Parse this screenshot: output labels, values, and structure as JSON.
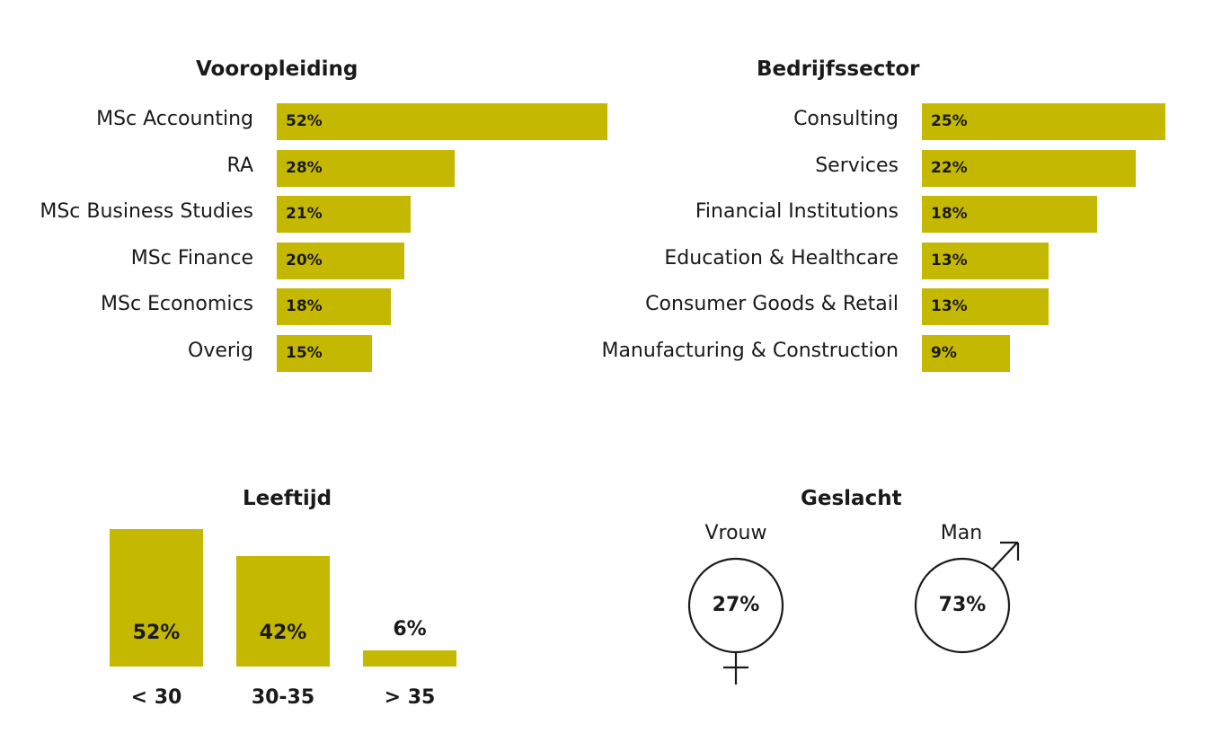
{
  "colors": {
    "bar": "#c4b800",
    "text": "#1a1a1a"
  },
  "chart_data": [
    {
      "type": "bar",
      "orientation": "horizontal",
      "title": "Vooropleiding",
      "categories": [
        "MSc Accounting",
        "RA",
        "MSc Business Studies",
        "MSc Finance",
        "MSc Economics",
        "Overig"
      ],
      "values": [
        52,
        28,
        21,
        20,
        18,
        15
      ],
      "value_labels": [
        "52%",
        "28%",
        "21%",
        "20%",
        "18%",
        "15%"
      ],
      "unit": "%"
    },
    {
      "type": "bar",
      "orientation": "horizontal",
      "title": "Bedrijfssector",
      "categories": [
        "Consulting",
        "Services",
        "Financial Institutions",
        "Education & Healthcare",
        "Consumer Goods & Retail",
        "Manufacturing & Construction"
      ],
      "values": [
        25,
        22,
        18,
        13,
        13,
        9
      ],
      "value_labels": [
        "25%",
        "22%",
        "18%",
        "13%",
        "13%",
        "9%"
      ],
      "unit": "%"
    },
    {
      "type": "bar",
      "orientation": "vertical",
      "title": "Leeftijd",
      "categories": [
        "< 30",
        "30-35",
        "> 35"
      ],
      "values": [
        52,
        42,
        6
      ],
      "value_labels": [
        "52%",
        "42%",
        "6%"
      ],
      "unit": "%"
    },
    {
      "type": "pie",
      "title": "Geslacht",
      "categories": [
        "Vrouw",
        "Man"
      ],
      "values": [
        27,
        73
      ],
      "value_labels": [
        "27%",
        "73%"
      ],
      "icons": [
        "female-symbol-icon",
        "male-symbol-icon"
      ],
      "unit": "%"
    }
  ]
}
